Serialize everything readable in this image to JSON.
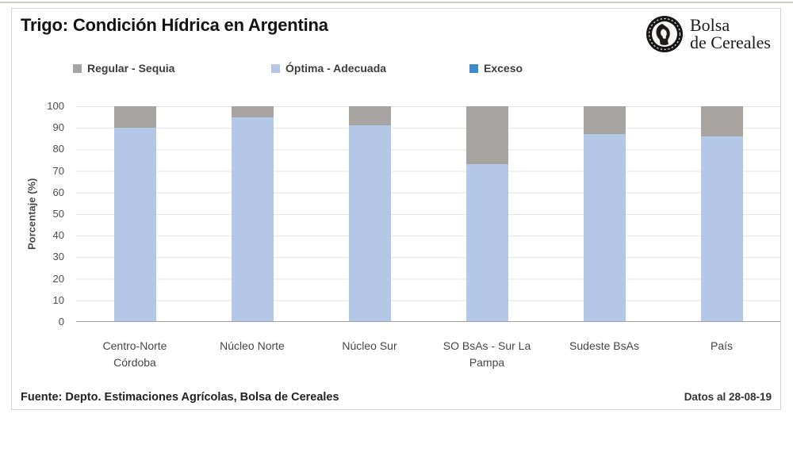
{
  "logo": {
    "line1": "Bolsa",
    "line2": "de Cereales"
  },
  "footer": {
    "source": "Fuente: Depto. Estimaciones Agrícolas, Bolsa de Cereales",
    "date": "Datos al 28-08-19"
  },
  "chart_data": {
    "type": "bar",
    "stacked": true,
    "title": "Trigo: Condición Hídrica en Argentina",
    "ylabel": "Porcentaje (%)",
    "ylim": [
      0,
      100
    ],
    "ytick_step": 10,
    "grid": true,
    "legend_position": "top",
    "categories": [
      "Centro-Norte Córdoba",
      "Núcleo Norte",
      "Núcleo Sur",
      "SO BsAs - Sur La Pampa",
      "Sudeste BsAs",
      "País"
    ],
    "series": [
      {
        "name": "Exceso",
        "color": "#3f8ac9",
        "values": [
          0,
          0,
          0,
          0,
          0,
          0
        ]
      },
      {
        "name": "Óptima - Adecuada",
        "color": "#b3c8e6",
        "values": [
          90,
          95,
          91,
          73,
          87,
          86
        ]
      },
      {
        "name": "Regular - Sequia",
        "color": "#a7a4a1",
        "values": [
          10,
          5,
          9,
          27,
          13,
          14
        ]
      }
    ],
    "legend_order": [
      "Regular - Sequia",
      "Óptima - Adecuada",
      "Exceso"
    ]
  }
}
